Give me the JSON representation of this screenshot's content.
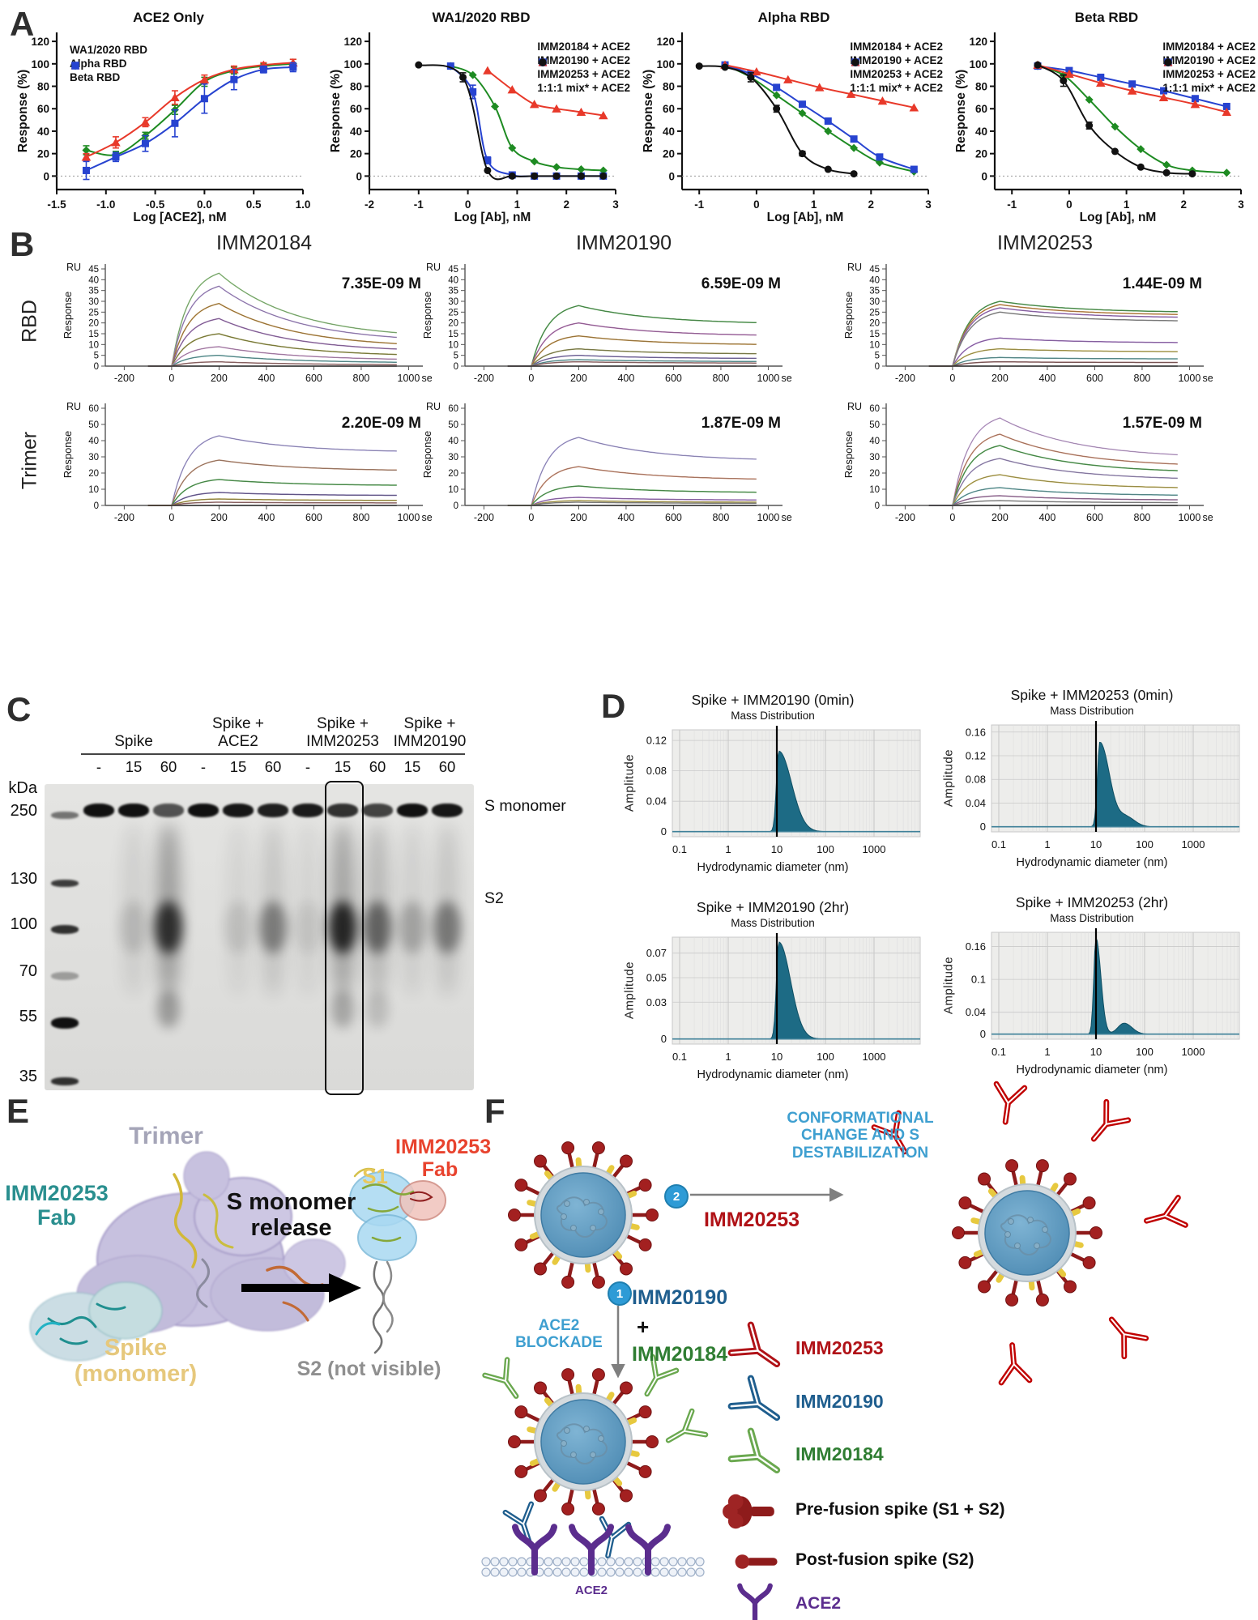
{
  "panels": {
    "a": "A",
    "b": "B",
    "c": "C",
    "d": "D",
    "e": "E",
    "f": "F"
  },
  "colors": {
    "green": "#1e8b22",
    "red": "#e8392a",
    "blue": "#2743d0",
    "black": "#111111",
    "dls_fill": "#1d6b85",
    "light_blue": "#3e9fd0",
    "dark_red": "#b01217",
    "dark_blue": "#1f5e8e",
    "dark_green": "#2f7d32",
    "purple": "#5b2d8e"
  },
  "chart_data": [
    {
      "type": "line",
      "title": "ACE2 Only",
      "xlabel": "Log [ACE2], nM",
      "ylabel": "Response (%)",
      "xlim": [
        -1.5,
        1.0
      ],
      "xticks": [
        "-1.5",
        "-1.0",
        "-0.5",
        "0.0",
        "0.5",
        "1.0"
      ],
      "yticks": [
        0,
        20,
        40,
        60,
        80,
        100,
        120
      ],
      "legend_pos": "left",
      "series": [
        {
          "name": "WA1/2020 RBD",
          "color": "#1e8b22",
          "marker": "diamond",
          "x": [
            -1.2,
            -0.9,
            -0.6,
            -0.3,
            0,
            0.3,
            0.6,
            0.9
          ],
          "y": [
            23,
            19,
            36,
            59,
            84,
            94,
            98,
            100
          ],
          "err": [
            4,
            3,
            3,
            4,
            4,
            3,
            2,
            4
          ]
        },
        {
          "name": "Alpha RBD",
          "color": "#e8392a",
          "marker": "triangle",
          "x": [
            -1.2,
            -0.9,
            -0.6,
            -0.3,
            0,
            0.3,
            0.6,
            0.9
          ],
          "y": [
            17,
            30,
            48,
            70,
            86,
            95,
            99,
            101
          ],
          "err": [
            3,
            5,
            4,
            6,
            4,
            3,
            2,
            3
          ]
        },
        {
          "name": "Beta RBD",
          "color": "#2743d0",
          "marker": "square",
          "x": [
            -1.2,
            -0.9,
            -0.6,
            -0.3,
            0,
            0.3,
            0.6,
            0.9
          ],
          "y": [
            5,
            17,
            29,
            47,
            69,
            86,
            95,
            97
          ],
          "err": [
            8,
            4,
            7,
            12,
            13,
            9,
            3,
            4
          ]
        }
      ]
    },
    {
      "type": "line",
      "title": "WA1/2020 RBD",
      "xlabel": "Log [Ab], nM",
      "ylabel": "Response (%)",
      "xlim": [
        -2,
        3
      ],
      "xticks": [
        "-2",
        "-1",
        "0",
        "1",
        "2",
        "3"
      ],
      "yticks": [
        0,
        20,
        40,
        60,
        80,
        100,
        120
      ],
      "legend_pos": "right",
      "series": [
        {
          "name": "IMM20184 + ACE2",
          "color": "#1e8b22",
          "marker": "diamond",
          "x": [
            -0.35,
            0.1,
            0.55,
            0.9,
            1.35,
            1.8,
            2.3,
            2.75
          ],
          "y": [
            98,
            90,
            62,
            25,
            13,
            8,
            6,
            5
          ]
        },
        {
          "name": "IMM20190 + ACE2",
          "color": "#2743d0",
          "marker": "square",
          "x": [
            -0.35,
            0.1,
            0.4,
            0.9,
            1.35,
            1.8,
            2.3,
            2.75
          ],
          "y": [
            98,
            75,
            14,
            1,
            0,
            0,
            0,
            0
          ],
          "err": [
            2,
            6,
            3,
            0,
            0,
            0,
            0,
            0
          ]
        },
        {
          "name": "IMM20253 + ACE2",
          "color": "#e8392a",
          "marker": "triangle",
          "x": [
            0.4,
            0.9,
            1.35,
            1.8,
            2.3,
            2.75
          ],
          "y": [
            94,
            77,
            64,
            60,
            57,
            54
          ]
        },
        {
          "name": "1:1:1 mix* + ACE2",
          "color": "#111111",
          "marker": "circle",
          "x": [
            -1,
            -0.1,
            0.4,
            0.9,
            1.35,
            1.8,
            2.3,
            2.75
          ],
          "y": [
            99,
            88,
            5,
            0,
            0,
            0,
            0,
            0
          ],
          "err": [
            1,
            4,
            0,
            0,
            0,
            0,
            0,
            0
          ]
        }
      ]
    },
    {
      "type": "line",
      "title": "Alpha RBD",
      "xlabel": "Log [Ab], nM",
      "ylabel": "Response (%)",
      "xlim": [
        -1.3,
        3
      ],
      "xticks": [
        "-1",
        "0",
        "1",
        "2",
        "3"
      ],
      "yticks": [
        0,
        20,
        40,
        60,
        80,
        100,
        120
      ],
      "legend_pos": "right",
      "series": [
        {
          "name": "IMM20184 + ACE2",
          "color": "#1e8b22",
          "marker": "diamond",
          "x": [
            -0.55,
            -0.1,
            0.35,
            0.8,
            1.25,
            1.7,
            2.15,
            2.75
          ],
          "y": [
            99,
            88,
            72,
            56,
            40,
            25,
            12,
            4
          ]
        },
        {
          "name": "IMM20190 + ACE2",
          "color": "#2743d0",
          "marker": "square",
          "x": [
            -0.55,
            -0.1,
            0.35,
            0.8,
            1.25,
            1.7,
            2.15,
            2.75
          ],
          "y": [
            99,
            91,
            79,
            64,
            49,
            33,
            17,
            6
          ]
        },
        {
          "name": "IMM20253 + ACE2",
          "color": "#e8392a",
          "marker": "triangle",
          "x": [
            -0.55,
            0,
            0.55,
            1.1,
            1.65,
            2.2,
            2.75
          ],
          "y": [
            99,
            93,
            86,
            79,
            73,
            67,
            61
          ]
        },
        {
          "name": "1:1:1 mix* + ACE2",
          "color": "#111111",
          "marker": "circle",
          "x": [
            -1,
            -0.55,
            -0.1,
            0.35,
            0.8,
            1.25,
            1.7
          ],
          "y": [
            98,
            97,
            88,
            60,
            20,
            6,
            2
          ],
          "err": [
            0,
            0,
            4,
            3,
            2,
            0,
            0
          ]
        }
      ]
    },
    {
      "type": "line",
      "title": "Beta RBD",
      "xlabel": "Log [Ab], nM",
      "ylabel": "Response (%)",
      "xlim": [
        -1.3,
        3
      ],
      "xticks": [
        "-1",
        "0",
        "1",
        "2",
        "3"
      ],
      "yticks": [
        0,
        20,
        40,
        60,
        80,
        100,
        120
      ],
      "legend_pos": "right",
      "series": [
        {
          "name": "IMM20184 + ACE2",
          "color": "#1e8b22",
          "marker": "diamond",
          "x": [
            -0.55,
            -0.1,
            0.35,
            0.8,
            1.25,
            1.7,
            2.15,
            2.75
          ],
          "y": [
            98,
            90,
            68,
            44,
            24,
            10,
            5,
            3
          ]
        },
        {
          "name": "IMM20190 + ACE2",
          "color": "#2743d0",
          "marker": "square",
          "x": [
            -0.55,
            0,
            0.55,
            1.1,
            1.65,
            2.2,
            2.75
          ],
          "y": [
            98,
            94,
            88,
            82,
            76,
            69,
            62
          ]
        },
        {
          "name": "IMM20253 + ACE2",
          "color": "#e8392a",
          "marker": "triangle",
          "x": [
            -0.55,
            0,
            0.55,
            1.1,
            1.65,
            2.2,
            2.75
          ],
          "y": [
            99,
            91,
            83,
            76,
            70,
            64,
            57
          ]
        },
        {
          "name": "1:1:1 mix* + ACE2",
          "color": "#111111",
          "marker": "circle",
          "x": [
            -0.55,
            -0.1,
            0.35,
            0.8,
            1.25,
            1.7,
            2.15
          ],
          "y": [
            99,
            85,
            45,
            22,
            8,
            3,
            2
          ],
          "err": [
            0,
            5,
            3,
            0,
            0,
            0,
            0
          ]
        }
      ]
    },
    {
      "type": "spr",
      "title": "IMM20184",
      "row": "RBD",
      "kd": "7.35E-09 M",
      "ru": "RU",
      "ylabel": "Response",
      "ymax": 45,
      "ystep": 5,
      "xticks": [
        -200,
        0,
        200,
        400,
        600,
        800,
        1000
      ],
      "x_unit": "sec",
      "decay": 0.36,
      "levels": [
        43,
        37,
        29,
        22,
        15,
        9,
        5,
        2
      ],
      "colors": [
        "#8fc47f",
        "#a98fcb",
        "#b8893f",
        "#9a6fb0",
        "#8f8f3f",
        "#c08fc0",
        "#5f9f9f",
        "#9f6f6f"
      ]
    },
    {
      "type": "spr",
      "title": "IMM20190",
      "row": "RBD",
      "kd": "6.59E-09 M",
      "ru": "RU",
      "ylabel": "Response",
      "ymax": 45,
      "ystep": 5,
      "xticks": [
        -200,
        0,
        200,
        400,
        600,
        800,
        1000
      ],
      "x_unit": "sec",
      "decay": 0.72,
      "levels": [
        28,
        20,
        14,
        8,
        5,
        3,
        2
      ],
      "colors": [
        "#4f9f4f",
        "#b06fb0",
        "#b8893f",
        "#8f8f4f",
        "#7f6fae",
        "#5f9f9f",
        "#9f6f6f"
      ]
    },
    {
      "type": "spr",
      "title": "IMM20253",
      "row": "RBD",
      "kd": "1.44E-09 M",
      "ru": "RU",
      "ylabel": "Response",
      "ymax": 45,
      "ystep": 5,
      "xticks": [
        -200,
        0,
        200,
        400,
        600,
        800,
        1000
      ],
      "x_unit": "sec",
      "decay": 0.84,
      "levels": [
        30,
        28.5,
        27,
        25,
        13,
        8,
        4,
        2
      ],
      "colors": [
        "#4f9f4f",
        "#c9893f",
        "#9f6fbf",
        "#8f8f8f",
        "#9f6fbf",
        "#b9a94f",
        "#5f9f9f",
        "#8f5f5f"
      ]
    },
    {
      "type": "spr",
      "title": "IMM20184",
      "row": "Trimer",
      "kd": "2.20E-09 M",
      "ru": "RU",
      "ylabel": "Response",
      "ymax": 60,
      "ystep": 10,
      "xticks": [
        -200,
        0,
        200,
        400,
        600,
        800,
        1000
      ],
      "x_unit": "sec",
      "decay": 0.78,
      "levels": [
        43,
        28,
        16,
        8,
        4,
        2
      ],
      "colors": [
        "#a89fd8",
        "#b8896f",
        "#4f9f4f",
        "#6f5f9f",
        "#a8983f",
        "#9f6f6f"
      ]
    },
    {
      "type": "spr",
      "title": "IMM20190",
      "row": "Trimer",
      "kd": "1.87E-09 M",
      "ru": "RU",
      "ylabel": "Response",
      "ymax": 60,
      "ystep": 10,
      "xticks": [
        -200,
        0,
        200,
        400,
        600,
        800,
        1000
      ],
      "x_unit": "sec",
      "decay": 0.68,
      "levels": [
        42,
        24,
        12,
        5,
        3,
        2
      ],
      "colors": [
        "#a89fd8",
        "#c9896f",
        "#4f9f4f",
        "#9f6fbf",
        "#b9a94f",
        "#8f8f8f"
      ]
    },
    {
      "type": "spr",
      "title": "IMM20253",
      "row": "Trimer",
      "kd": "1.57E-09 M",
      "ru": "RU",
      "ylabel": "Response",
      "ymax": 60,
      "ystep": 10,
      "xticks": [
        -200,
        0,
        200,
        400,
        600,
        800,
        1000
      ],
      "x_unit": "sec",
      "decay": 0.58,
      "levels": [
        54,
        44,
        37,
        29,
        19,
        11,
        6,
        3
      ],
      "colors": [
        "#c9a9d9",
        "#c9896f",
        "#4f9f4f",
        "#9f8fbf",
        "#b9a94f",
        "#5f9f9f",
        "#9f6f9f",
        "#8f8f8f"
      ]
    },
    {
      "type": "area",
      "title": "Spike + IMM20190 (0min)",
      "subtitle": "Mass Distribution",
      "ylabel": "Amplitude",
      "xlabel": "Hydrodynamic diameter (nm)",
      "xticks": [
        "0.1",
        "1",
        "10",
        "100",
        "1000"
      ],
      "yticks": [
        "0",
        "0.04",
        "0.08",
        "0.12"
      ],
      "ytop": 0.134,
      "fill": "#1d6b85",
      "marker_nm": 10,
      "peaks": [
        {
          "nm": 11,
          "h": 0.106,
          "sl": 0.05,
          "sr": 0.26
        }
      ]
    },
    {
      "type": "area",
      "title": "Spike + IMM20253 (0min)",
      "subtitle": "Mass Distribution",
      "ylabel": "Amplitude",
      "xlabel": "Hydrodynamic diameter (nm)",
      "xticks": [
        "0.1",
        "1",
        "10",
        "100",
        "1000"
      ],
      "yticks": [
        "0",
        "0.04",
        "0.08",
        "0.12",
        "0.16"
      ],
      "ytop": 0.172,
      "fill": "#1d6b85",
      "marker_nm": 10,
      "peaks": [
        {
          "nm": 12,
          "h": 0.143,
          "sl": 0.05,
          "sr": 0.2
        },
        {
          "nm": 42,
          "h": 0.016,
          "sl": 0.15,
          "sr": 0.18
        }
      ]
    },
    {
      "type": "area",
      "title": "Spike + IMM20190 (2hr)",
      "subtitle": "Mass Distribution",
      "ylabel": "Amplitude",
      "xlabel": "Hydrodynamic diameter (nm)",
      "xticks": [
        "0.1",
        "1",
        "10",
        "100",
        "1000"
      ],
      "yticks": [
        "0",
        "0.03",
        "0.05",
        "0.07"
      ],
      "ytop": 0.083,
      "fill": "#1d6b85",
      "marker_nm": 10,
      "peaks": [
        {
          "nm": 11,
          "h": 0.079,
          "sl": 0.05,
          "sr": 0.24
        }
      ]
    },
    {
      "type": "area",
      "title": "Spike + IMM20253 (2hr)",
      "subtitle": "Mass Distribution",
      "ylabel": "Amplitude",
      "xlabel": "Hydrodynamic diameter (nm)",
      "xticks": [
        "0.1",
        "1",
        "10",
        "100",
        "1000"
      ],
      "yticks": [
        "0",
        "0.04",
        "0.1",
        "0.16"
      ],
      "ytop": 0.186,
      "fill": "#1d6b85",
      "marker_nm": 10,
      "peaks": [
        {
          "nm": 10,
          "h": 0.176,
          "sl": 0.045,
          "sr": 0.1
        },
        {
          "nm": 38,
          "h": 0.02,
          "sl": 0.13,
          "sr": 0.16
        }
      ]
    }
  ],
  "panelB": {
    "columns": [
      "IMM20184",
      "IMM20190",
      "IMM20253"
    ],
    "row_labels": [
      "RBD",
      "Trimer"
    ]
  },
  "panelC": {
    "kda": "kDa",
    "ladder": [
      "250",
      "130",
      "100",
      "70",
      "55",
      "35"
    ],
    "groups": [
      {
        "label": "Spike",
        "lanes": [
          "-",
          "15",
          "60"
        ]
      },
      {
        "label": "Spike +\nACE2",
        "lanes": [
          "-",
          "15",
          "60"
        ]
      },
      {
        "label": "Spike +\nIMM20253",
        "lanes": [
          "-",
          "15",
          "60"
        ]
      },
      {
        "label": "Spike +\nIMM20190",
        "lanes": [
          "15",
          "60"
        ]
      }
    ],
    "band_monomer": "S monomer",
    "band_s2": "S2"
  },
  "panelE": {
    "trimer": "Trimer",
    "fab_left": "IMM20253\nFab",
    "release": "S monomer\nrelease",
    "s1": "S1",
    "fab_right": "IMM20253\nFab",
    "spike": "Spike\n(monomer)",
    "s2": "S2 (not visible)"
  },
  "panelF": {
    "step2_text": "CONFORMATIONAL\nCHANGE AND S\nDESTABILIZATION",
    "step2_num": "2",
    "step2_ab": "IMM20253",
    "step1_num": "1",
    "step1_text": "ACE2\nBLOCKADE",
    "step1_ab1": "IMM20190",
    "plus": "+",
    "step1_ab2": "IMM20184",
    "membrane_label": "ACE2",
    "legend": [
      {
        "label": "IMM20253",
        "type": "antibody",
        "color": "#b01217",
        "label_color": "#b01217"
      },
      {
        "label": "IMM20190",
        "type": "antibody",
        "color": "#1f5e8e",
        "label_color": "#1f5e8e"
      },
      {
        "label": "IMM20184",
        "type": "antibody",
        "color": "#6aa84f",
        "label_color": "#2f7d32"
      },
      {
        "label": "Pre-fusion spike (S1 + S2)",
        "type": "prefusion",
        "color": "#8e1b1b",
        "label_color": "#111111"
      },
      {
        "label": "Post-fusion spike (S2)",
        "type": "postfusion",
        "color": "#8e1b1b",
        "label_color": "#111111"
      },
      {
        "label": "ACE2",
        "type": "receptor",
        "color": "#5b2d8e",
        "label_color": "#5b2d8e"
      }
    ]
  }
}
